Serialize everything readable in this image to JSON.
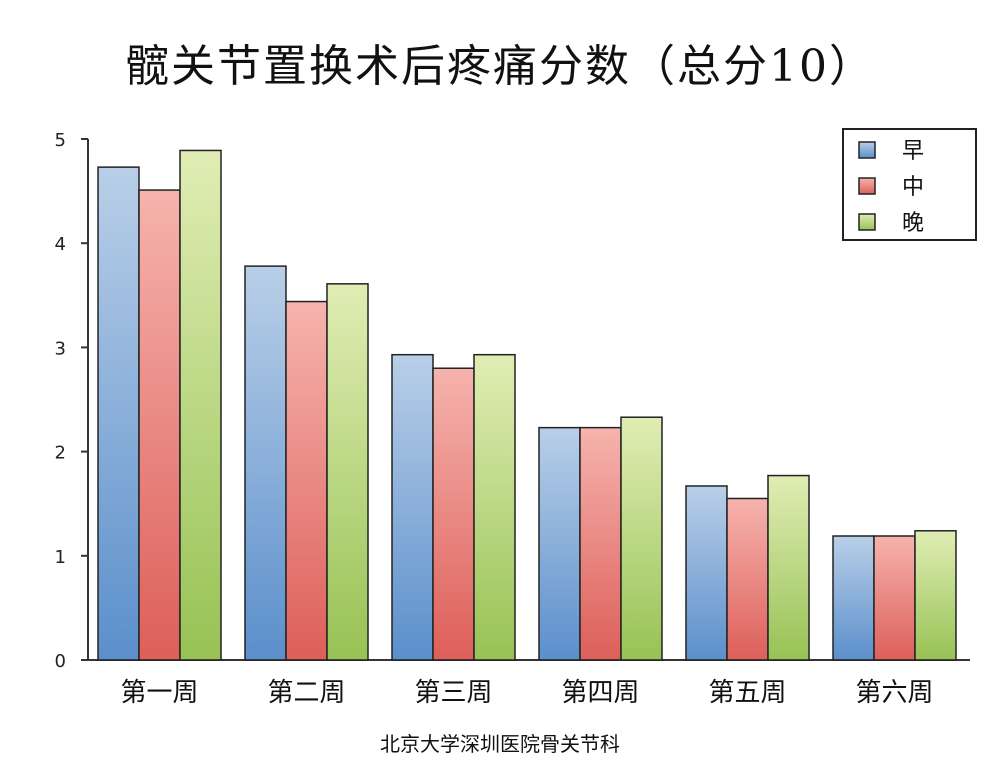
{
  "chart_data": {
    "type": "bar",
    "title": "髋关节置换术后疼痛分数（总分10）",
    "categories": [
      "第一周",
      "第二周",
      "第三周",
      "第四周",
      "第五周",
      "第六周"
    ],
    "series": [
      {
        "name": "早",
        "values": [
          4.73,
          3.78,
          2.93,
          2.23,
          1.67,
          1.19
        ],
        "color_top": "#b9cfe8",
        "color_bottom": "#5b8fcb"
      },
      {
        "name": "中",
        "values": [
          4.51,
          3.44,
          2.8,
          2.23,
          1.55,
          1.19
        ],
        "color_top": "#f6b3ad",
        "color_bottom": "#dd5f5a"
      },
      {
        "name": "晚",
        "values": [
          4.89,
          3.61,
          2.93,
          2.33,
          1.77,
          1.24
        ],
        "color_top": "#e0edb4",
        "color_bottom": "#97c254"
      }
    ],
    "yticks": [
      0,
      1,
      2,
      3,
      4,
      5
    ],
    "ylim": [
      0,
      5
    ],
    "grid": false,
    "legend_position": "top-right",
    "xlabel": "",
    "ylabel": ""
  },
  "footer": "北京大学深圳医院骨关节科"
}
